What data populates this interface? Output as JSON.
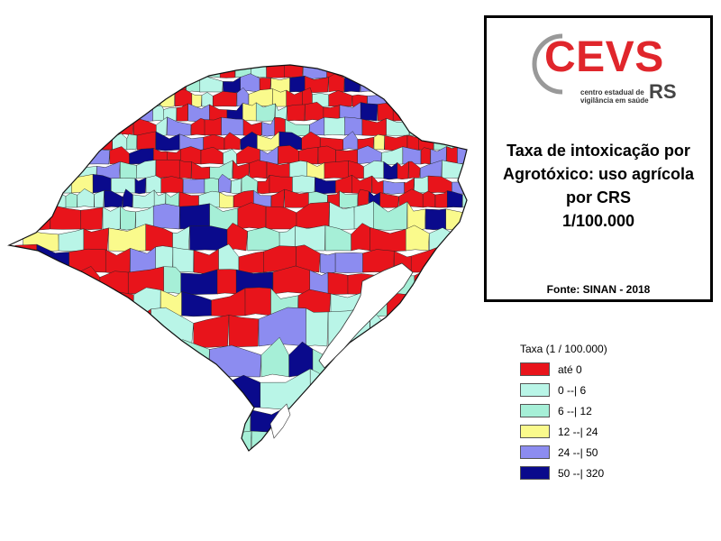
{
  "map": {
    "region": "Rio Grande do Sul",
    "default_category_color": "#e41a1c"
  },
  "info_box": {
    "logo_text": "CEVS",
    "logo_tagline_line1": "centro estadual de",
    "logo_tagline_line2": "vigilância em saúde",
    "logo_state": "RS",
    "title_lines": [
      "Taxa de intoxicação por",
      "Agrotóxico: uso agrícola",
      "por CRS",
      "1/100.000"
    ],
    "source": "Fonte: SINAN - 2018"
  },
  "legend": {
    "title": "Taxa (1 / 100.000)",
    "items": [
      {
        "label": "até 0",
        "color": "#e8141b"
      },
      {
        "label": "0 --| 6",
        "color": "#b9f5e7"
      },
      {
        "label": "6 --| 12",
        "color": "#a6efd7"
      },
      {
        "label": "12 --| 24",
        "color": "#fafa8c"
      },
      {
        "label": "24 --| 50",
        "color": "#8c8cf0"
      },
      {
        "label": "50 --| 320",
        "color": "#0a0a8c"
      }
    ]
  },
  "colors": {
    "brand_red": "#e0262c",
    "box_border": "#000000"
  }
}
